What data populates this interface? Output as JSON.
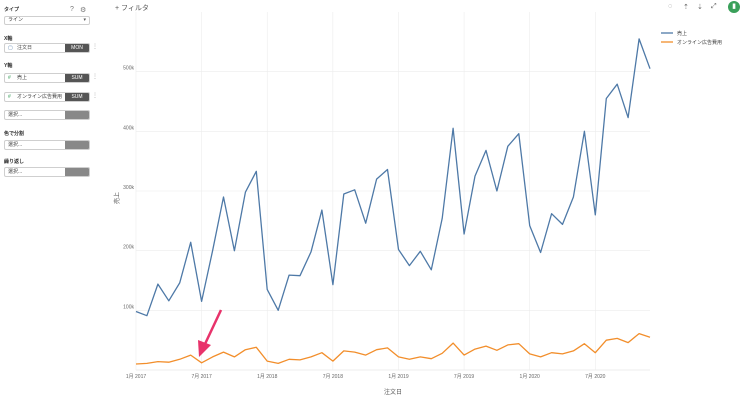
{
  "sidebar": {
    "type_label": "タイプ",
    "type_value": "ライン",
    "x_axis_label": "X軸",
    "x_field": {
      "name": "注文日",
      "agg": "MON"
    },
    "y_axis_label": "Y軸",
    "y_fields": [
      {
        "name": "売上",
        "agg": "SUM"
      },
      {
        "name": "オンライン広告費用",
        "agg": "SUM"
      }
    ],
    "select_placeholder": "選択...",
    "color_split_label": "色で分割",
    "repeat_label": "繰り返し"
  },
  "toolbar": {
    "filter_label": "フィルタ"
  },
  "chart_data": {
    "type": "line",
    "xlabel": "注文日",
    "ylabel": "売上",
    "ylim": [
      0,
      600000
    ],
    "yticks": [
      100000,
      200000,
      300000,
      400000,
      500000
    ],
    "ytick_labels": [
      "100k",
      "200k",
      "300k",
      "400k",
      "500k"
    ],
    "x": [
      "2017-01",
      "2017-02",
      "2017-03",
      "2017-04",
      "2017-05",
      "2017-06",
      "2017-07",
      "2017-08",
      "2017-09",
      "2017-10",
      "2017-11",
      "2017-12",
      "2018-01",
      "2018-02",
      "2018-03",
      "2018-04",
      "2018-05",
      "2018-06",
      "2018-07",
      "2018-08",
      "2018-09",
      "2018-10",
      "2018-11",
      "2018-12",
      "2019-01",
      "2019-02",
      "2019-03",
      "2019-04",
      "2019-05",
      "2019-06",
      "2019-07",
      "2019-08",
      "2019-09",
      "2019-10",
      "2019-11",
      "2019-12",
      "2020-01",
      "2020-02",
      "2020-03",
      "2020-04",
      "2020-05",
      "2020-06",
      "2020-07",
      "2020-08",
      "2020-09",
      "2020-10",
      "2020-11",
      "2020-12"
    ],
    "xtick_labels": [
      {
        "x": "2017-01",
        "label": "1月 2017"
      },
      {
        "x": "2017-07",
        "label": "7月 2017"
      },
      {
        "x": "2018-01",
        "label": "1月 2018"
      },
      {
        "x": "2018-07",
        "label": "7月 2018"
      },
      {
        "x": "2019-01",
        "label": "1月 2019"
      },
      {
        "x": "2019-07",
        "label": "7月 2019"
      },
      {
        "x": "2020-01",
        "label": "1月 2020"
      },
      {
        "x": "2020-07",
        "label": "7月 2020"
      }
    ],
    "series": [
      {
        "name": "売上",
        "color": "#4e79a7",
        "values": [
          98000,
          91000,
          144000,
          116000,
          146000,
          214000,
          115000,
          200000,
          290000,
          200000,
          298000,
          333000,
          135000,
          100000,
          159000,
          158000,
          198000,
          268000,
          143000,
          295000,
          302000,
          246000,
          320000,
          336000,
          202000,
          175000,
          199000,
          168000,
          254000,
          405000,
          228000,
          325000,
          368000,
          300000,
          375000,
          396000,
          242000,
          197000,
          262000,
          244000,
          290000,
          400000,
          260000,
          455000,
          479000,
          423000,
          555000,
          505000
        ]
      },
      {
        "name": "オンライン広告費用",
        "color": "#f28e2b",
        "values": [
          10000,
          11000,
          14000,
          13000,
          18000,
          25000,
          12000,
          22000,
          30000,
          22000,
          34000,
          38000,
          15000,
          11000,
          18000,
          17000,
          22000,
          29000,
          15000,
          32000,
          30000,
          25000,
          34000,
          37000,
          22000,
          18000,
          22000,
          19000,
          28000,
          45000,
          25000,
          35000,
          40000,
          33000,
          42000,
          44000,
          27000,
          22000,
          29000,
          27000,
          32000,
          44000,
          29000,
          50000,
          53000,
          46000,
          61000,
          55000
        ]
      }
    ],
    "legend_position": "top-right",
    "grid": true,
    "annotation": "arrow pointing to 2017-06"
  }
}
